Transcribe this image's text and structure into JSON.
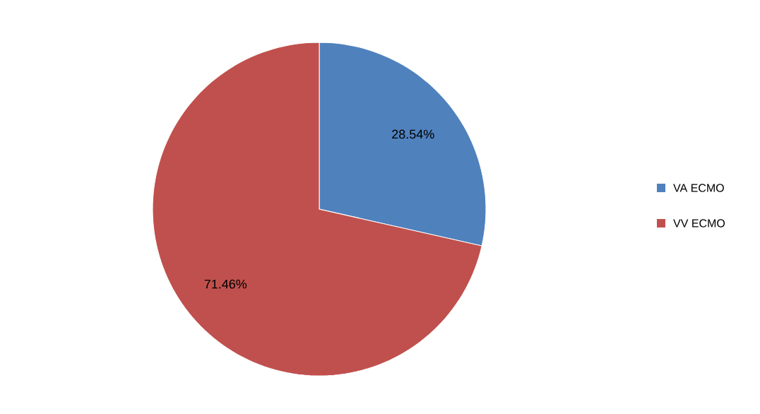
{
  "chart_data": {
    "type": "pie",
    "categories": [
      "VA ECMO",
      "VV ECMO"
    ],
    "values": [
      28.54,
      71.46
    ],
    "colors": [
      "#4f81bd",
      "#c0504d"
    ],
    "value_labels": [
      "28.54%",
      "71.46%"
    ],
    "legend": "right"
  }
}
